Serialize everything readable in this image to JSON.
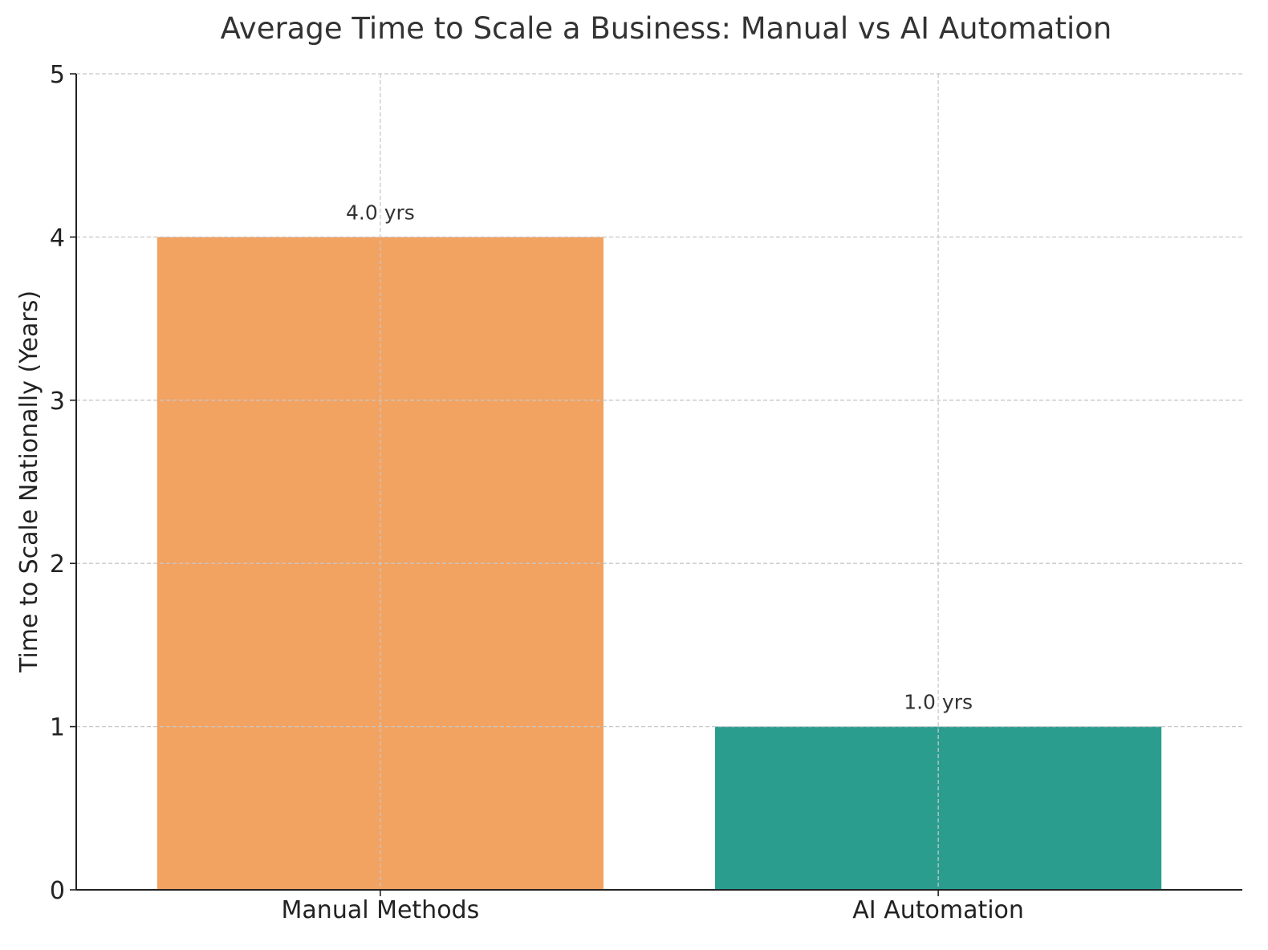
{
  "chart_data": {
    "type": "bar",
    "title": "Average Time to Scale a Business: Manual vs AI Automation",
    "xlabel": "",
    "ylabel": "Time to Scale Nationally (Years)",
    "categories": [
      "Manual Methods",
      "AI Automation"
    ],
    "values": [
      4.0,
      1.0
    ],
    "value_labels": [
      "4.0 yrs",
      "1.0 yrs"
    ],
    "bar_colors": [
      "#F2A261",
      "#2A9D8F"
    ],
    "ylim": [
      0,
      5
    ],
    "yticks": [
      0,
      1,
      2,
      3,
      4,
      5
    ],
    "ytick_labels": [
      "0",
      "1",
      "2",
      "3",
      "4",
      "5"
    ],
    "grid": true,
    "grid_style": "dashed",
    "legend": "none"
  }
}
